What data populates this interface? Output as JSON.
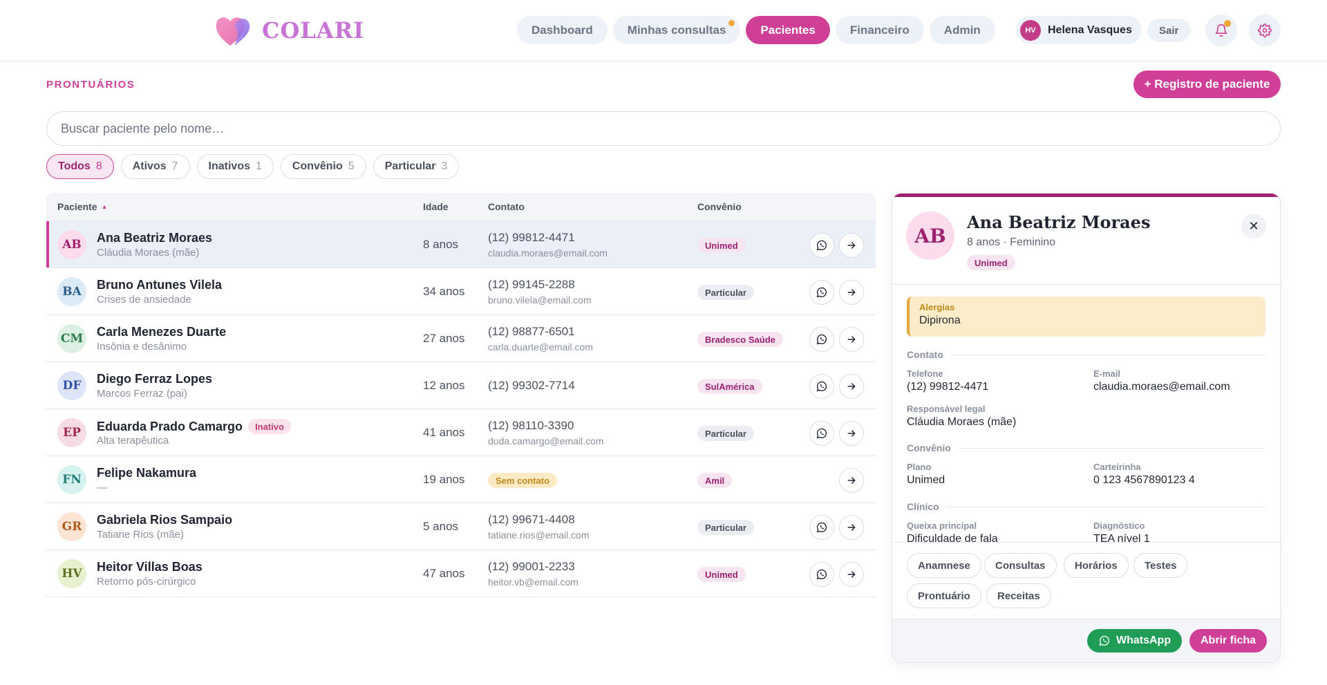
{
  "header": {
    "brand": "COLARI",
    "nav": [
      {
        "label": "Dashboard"
      },
      {
        "label": "Minhas consultas"
      },
      {
        "label": "Pacientes"
      },
      {
        "label": "Financeiro"
      },
      {
        "label": "Admin"
      }
    ],
    "active_nav": "Pacientes",
    "user": {
      "initials": "HV",
      "name": "Helena Vasques"
    },
    "logout_label": "Sair",
    "icons": [
      "bell-icon",
      "gear-icon"
    ]
  },
  "page": {
    "section_title": "PRONTUÁRIOS",
    "new_button": "+ Registro de paciente",
    "search_placeholder": "Buscar paciente pelo nome…",
    "filters": [
      {
        "label": "Todos",
        "count": "8"
      },
      {
        "label": "Ativos",
        "count": "7"
      },
      {
        "label": "Inativos",
        "count": "1"
      },
      {
        "label": "Convênio",
        "count": "5"
      },
      {
        "label": "Particular",
        "count": "3"
      }
    ],
    "active_filter": "Todos"
  },
  "table": {
    "columns": [
      "Paciente",
      "Idade",
      "Contato",
      "Convênio"
    ],
    "sort_icon": "sort-up-icon",
    "rows": [
      {
        "initials": "AB",
        "name": "Ana Beatriz Moraes",
        "sub": "Cláudia Moraes (mãe)",
        "age": "8 anos",
        "phone": "(12) 99812-4471",
        "email": "claudia.moraes@email.com",
        "insurance": "Unimed"
      },
      {
        "initials": "BA",
        "name": "Bruno Antunes Vilela",
        "sub": "Crises de ansiedade",
        "age": "34 anos",
        "phone": "(12) 99145-2288",
        "email": "bruno.vilela@email.com",
        "insurance": "Particular"
      },
      {
        "initials": "CM",
        "name": "Carla Menezes Duarte",
        "sub": "Insônia e desânimo",
        "age": "27 anos",
        "phone": "(12) 98877-6501",
        "email": "carla.duarte@email.com",
        "insurance": "Bradesco Saúde"
      },
      {
        "initials": "DF",
        "name": "Diego Ferraz Lopes",
        "sub": "Marcos Ferraz (pai)",
        "age": "12 anos",
        "phone": "(12) 99302-7714",
        "email": "",
        "insurance": "SulAmérica"
      },
      {
        "initials": "EP",
        "name": "Eduarda Prado Camargo",
        "badge": "Inativo",
        "sub": "Alta terapêutica",
        "age": "41 anos",
        "phone": "(12) 98110-3390",
        "email": "duda.camargo@email.com",
        "insurance": "Particular"
      },
      {
        "initials": "FN",
        "name": "Felipe Nakamura",
        "sub": "—",
        "age": "19 anos",
        "no_contact": "Sem contato",
        "insurance": "Amil"
      },
      {
        "initials": "GR",
        "name": "Gabriela Rios Sampaio",
        "sub": "Tatiane Rios (mãe)",
        "age": "5 anos",
        "phone": "(12) 99671-4408",
        "email": "tatiane.rios@email.com",
        "insurance": "Particular"
      },
      {
        "initials": "HV",
        "name": "Heitor Villas Boas",
        "sub": "Retorno pós-cirúrgico",
        "age": "47 anos",
        "phone": "(12) 99001-2233",
        "email": "heitor.vb@email.com",
        "insurance": "Unimed"
      }
    ]
  },
  "panel": {
    "initials": "AB",
    "name": "Ana Beatriz Moraes",
    "subtitle": "8 anos · Feminino",
    "insurance": "Unimed",
    "allergy": {
      "label": "Alergias",
      "value": "Dipirona"
    },
    "contact": {
      "title": "Contato",
      "phone_label": "Telefone",
      "phone": "(12) 99812-4471",
      "email_label": "E-mail",
      "email": "claudia.moraes@email.com",
      "guardian_label": "Responsável legal",
      "guardian": "Cláudia Moraes (mãe)"
    },
    "insurance_section": {
      "title": "Convênio",
      "plan_label": "Plano",
      "plan": "Unimed",
      "card_label": "Carteirinha",
      "card": "0 123 4567890123 4"
    },
    "clinical": {
      "title": "Clínico",
      "complaint_label": "Queixa principal",
      "complaint": "Dificuldade de fala",
      "diagnosis_label": "Diagnóstico",
      "diagnosis": "TEA nível 1"
    },
    "tabs": [
      "Anamnese",
      "Consultas",
      "Horários",
      "Testes",
      "Prontuário",
      "Receitas"
    ],
    "whatsapp_label": "WhatsApp",
    "open_label": "Abrir ficha"
  },
  "colors": {
    "brand": "#cf3f97",
    "brand_dark": "#a3206f",
    "whatsapp": "#1f9d57",
    "warning": "#f0a93b"
  }
}
